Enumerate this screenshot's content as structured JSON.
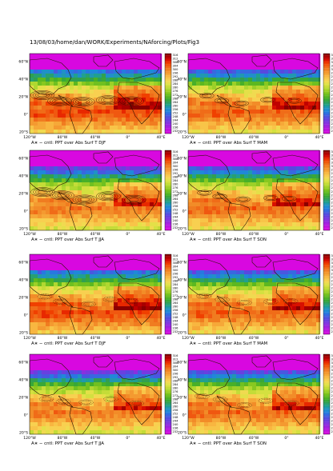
{
  "header": {
    "path": "13/08/03/home/dan/WORK/Experiments/NAforcing/Plots/Fig3"
  },
  "common": {
    "lat_ticks": [
      "60°N",
      "40°N",
      "20°N",
      "0°",
      "20°S"
    ],
    "lon_ticks": [
      "120°W",
      "80°W",
      "40°W",
      "0°",
      "40°E"
    ],
    "colorbar_labels": [
      "316",
      "314",
      "312",
      "310",
      "308",
      "306",
      "304",
      "302",
      "300",
      "298",
      "296",
      "294",
      "292",
      "290",
      "288",
      "286",
      "284",
      "282",
      "280",
      "278",
      "276",
      "274",
      "272",
      "270",
      "268",
      "266",
      "264",
      "262",
      "260",
      "258",
      "256",
      "254",
      "252",
      "250",
      "248",
      "246",
      "244",
      "242",
      "240",
      "238",
      "236",
      "234",
      "232",
      "230"
    ]
  },
  "colors": {
    "palette": [
      "#8b0000",
      "#a80000",
      "#c00000",
      "#d81000",
      "#e82800",
      "#f04000",
      "#f05810",
      "#f06c18",
      "#f07c20",
      "#f28c28",
      "#f49a30",
      "#f6a838",
      "#f8b640",
      "#f8c448",
      "#f8d050",
      "#f0da50",
      "#e4e048",
      "#d4e040",
      "#c4dc38",
      "#b0d830",
      "#9cd028",
      "#88c820",
      "#70c020",
      "#5cb820",
      "#48b028",
      "#38a838",
      "#30a050",
      "#28a070",
      "#20a090",
      "#2098b0",
      "#2090c8",
      "#2088d8",
      "#2878e0",
      "#3868e0",
      "#4858e0",
      "#5848e0",
      "#6840e0",
      "#7838e0",
      "#8830e0",
      "#9828e0",
      "#a820e0",
      "#b818e0",
      "#c810e0",
      "#d808e0"
    ]
  },
  "panels": [
    {
      "title": "A∗ − cntl: PPT over Abs Surf T DJF",
      "season": "DJF",
      "row": 0,
      "col": 0
    },
    {
      "title": "A∗ − cntl: PPT over Abs Surf T MAM",
      "season": "MAM",
      "row": 0,
      "col": 1
    },
    {
      "title": "A∗ − cntl: PPT over Abs Surf T JJA",
      "season": "JJA",
      "row": 1,
      "col": 0
    },
    {
      "title": "A∗ − cntl: PPT over Abs Surf T SON",
      "season": "SON",
      "row": 1,
      "col": 1
    },
    {
      "title": "A∗ − cntl: PPT over Abs Surf T DJF",
      "season": "DJF",
      "row": 2,
      "col": 0
    },
    {
      "title": "A∗ − cntl: PPT over Abs Surf T MAM",
      "season": "MAM",
      "row": 2,
      "col": 1
    },
    {
      "title": "A∗ − cntl: PPT over Abs Surf T JJA",
      "season": "JJA",
      "row": 3,
      "col": 0
    },
    {
      "title": "A∗ − cntl: PPT over Abs Surf T SON",
      "season": "SON",
      "row": 3,
      "col": 1
    }
  ],
  "chart_data": {
    "type": "heatmap",
    "xlim": [
      -120,
      40
    ],
    "ylim": [
      -20,
      70
    ],
    "xlabel": "",
    "ylabel": "",
    "colorbar_range": [
      230,
      316
    ]
  }
}
